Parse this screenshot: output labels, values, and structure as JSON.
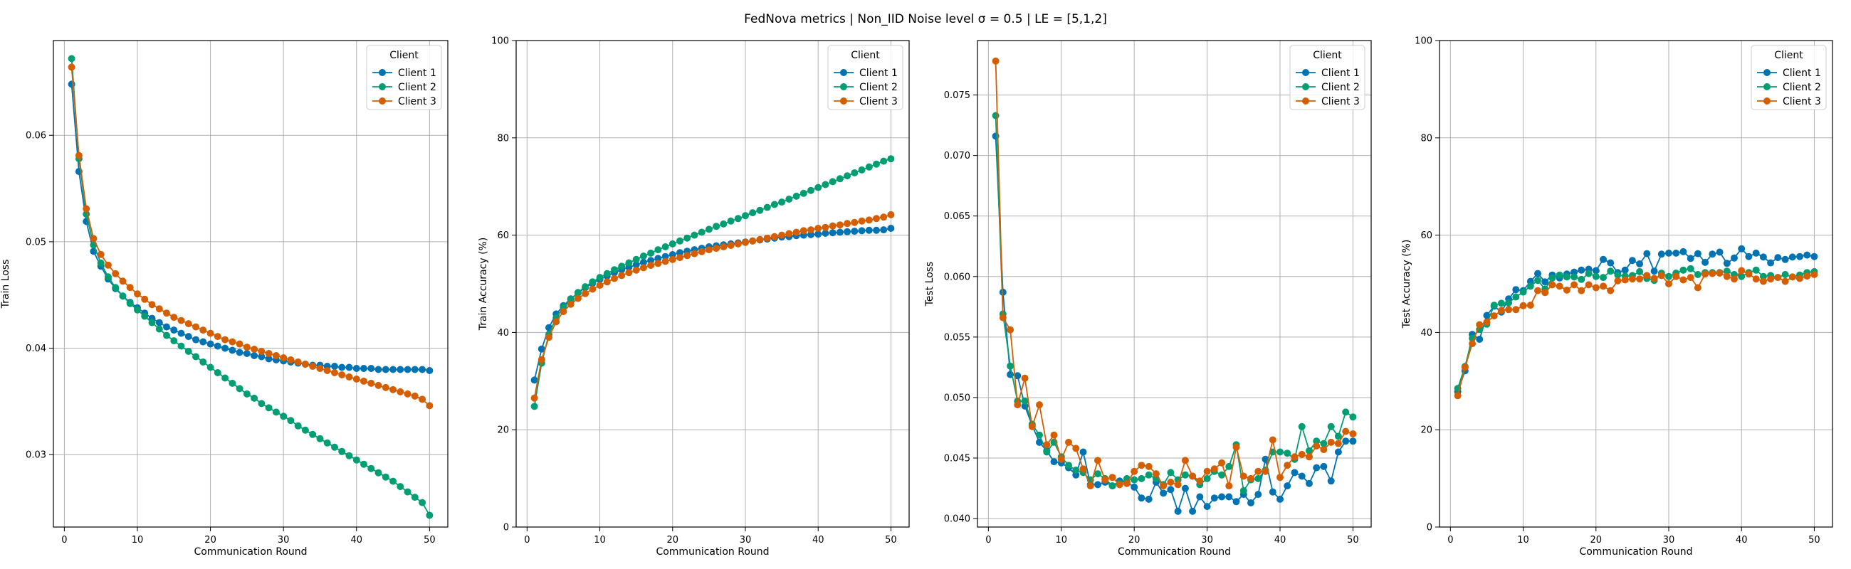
{
  "suptitle": "FedNova metrics | Non_IID Noise level σ = 0.5 | LE = [5,1,2]",
  "colors": {
    "Client 1": "#0173b2",
    "Client 2": "#029e73",
    "Client 3": "#d55e00",
    "grid": "#b0b0b0",
    "axes": "#000000",
    "legend_border": "#cccccc"
  },
  "legend": {
    "title": "Client",
    "placement": "upper right"
  },
  "chart_data": [
    {
      "type": "line",
      "xlabel": "Communication Round",
      "ylabel": "Train Loss",
      "xlim": [
        -1.5,
        52.5
      ],
      "ylim": [
        0.0232,
        0.0689
      ],
      "xticks": [
        0,
        10,
        20,
        30,
        40,
        50
      ],
      "yticks": [
        0.03,
        0.04,
        0.05,
        0.06
      ],
      "ytick_labels": [
        "0.03",
        "0.04",
        "0.05",
        "0.06"
      ],
      "grid": true,
      "x": [
        1,
        2,
        3,
        4,
        5,
        6,
        7,
        8,
        9,
        10,
        11,
        12,
        13,
        14,
        15,
        16,
        17,
        18,
        19,
        20,
        21,
        22,
        23,
        24,
        25,
        26,
        27,
        28,
        29,
        30,
        31,
        32,
        33,
        34,
        35,
        36,
        37,
        38,
        39,
        40,
        41,
        42,
        43,
        44,
        45,
        46,
        47,
        48,
        49,
        50
      ],
      "series": [
        {
          "name": "Client 1",
          "values": [
            0.0648,
            0.0566,
            0.0519,
            0.0491,
            0.0477,
            0.0465,
            0.0456,
            0.0449,
            0.0443,
            0.0438,
            0.0433,
            0.0428,
            0.0424,
            0.042,
            0.0417,
            0.0414,
            0.0411,
            0.0408,
            0.0406,
            0.0404,
            0.0402,
            0.04,
            0.0398,
            0.0396,
            0.0395,
            0.0393,
            0.0392,
            0.039,
            0.0389,
            0.0388,
            0.0387,
            0.0386,
            0.0385,
            0.0384,
            0.0384,
            0.0383,
            0.0383,
            0.0382,
            0.0382,
            0.0381,
            0.0381,
            0.0381,
            0.038,
            0.038,
            0.038,
            0.038,
            0.038,
            0.038,
            0.038,
            0.0379
          ]
        },
        {
          "name": "Client 2",
          "values": [
            0.0672,
            0.0578,
            0.0526,
            0.0497,
            0.048,
            0.0467,
            0.0457,
            0.0449,
            0.0442,
            0.0436,
            0.043,
            0.0424,
            0.0418,
            0.0412,
            0.0407,
            0.0402,
            0.0397,
            0.0392,
            0.0387,
            0.0382,
            0.0377,
            0.0372,
            0.0367,
            0.0362,
            0.0357,
            0.0353,
            0.0348,
            0.0344,
            0.034,
            0.0336,
            0.0332,
            0.0327,
            0.0323,
            0.0319,
            0.0315,
            0.0311,
            0.0307,
            0.0303,
            0.0299,
            0.0295,
            0.0291,
            0.0287,
            0.0283,
            0.0279,
            0.0275,
            0.027,
            0.0265,
            0.026,
            0.0255,
            0.0243
          ]
        },
        {
          "name": "Client 3",
          "values": [
            0.0664,
            0.0581,
            0.0531,
            0.0503,
            0.0488,
            0.0478,
            0.047,
            0.0463,
            0.0457,
            0.0451,
            0.0446,
            0.0441,
            0.0437,
            0.0433,
            0.0429,
            0.0426,
            0.0423,
            0.042,
            0.0417,
            0.0414,
            0.0411,
            0.0408,
            0.0406,
            0.0404,
            0.0401,
            0.0399,
            0.0397,
            0.0395,
            0.0393,
            0.0391,
            0.0389,
            0.0387,
            0.0385,
            0.0383,
            0.0381,
            0.0379,
            0.0377,
            0.0375,
            0.0373,
            0.0371,
            0.0369,
            0.0367,
            0.0365,
            0.0363,
            0.0361,
            0.0359,
            0.0357,
            0.0355,
            0.0352,
            0.0346
          ]
        }
      ]
    },
    {
      "type": "line",
      "xlabel": "Communication Round",
      "ylabel": "Train Accuracy (%)",
      "xlim": [
        -1.5,
        52.5
      ],
      "ylim": [
        0,
        100
      ],
      "xticks": [
        0,
        10,
        20,
        30,
        40,
        50
      ],
      "yticks": [
        0,
        20,
        40,
        60,
        80,
        100
      ],
      "ytick_labels": [
        "0",
        "20",
        "40",
        "60",
        "80",
        "100"
      ],
      "grid": true,
      "x": [
        1,
        2,
        3,
        4,
        5,
        6,
        7,
        8,
        9,
        10,
        11,
        12,
        13,
        14,
        15,
        16,
        17,
        18,
        19,
        20,
        21,
        22,
        23,
        24,
        25,
        26,
        27,
        28,
        29,
        30,
        31,
        32,
        33,
        34,
        35,
        36,
        37,
        38,
        39,
        40,
        41,
        42,
        43,
        44,
        45,
        46,
        47,
        48,
        49,
        50
      ],
      "series": [
        {
          "name": "Client 1",
          "values": [
            30.2,
            36.6,
            41.0,
            43.8,
            45.5,
            46.9,
            48.1,
            49.2,
            50.1,
            50.9,
            51.6,
            52.3,
            52.9,
            53.4,
            53.9,
            54.4,
            54.8,
            55.2,
            55.6,
            56.0,
            56.4,
            56.7,
            57.0,
            57.3,
            57.6,
            57.8,
            58.0,
            58.2,
            58.4,
            58.6,
            58.8,
            59.0,
            59.2,
            59.4,
            59.6,
            59.7,
            59.9,
            60.0,
            60.1,
            60.2,
            60.4,
            60.5,
            60.6,
            60.7,
            60.8,
            60.9,
            61.0,
            61.0,
            61.1,
            61.4
          ]
        },
        {
          "name": "Client 2",
          "values": [
            24.8,
            33.7,
            39.6,
            43.0,
            45.2,
            46.8,
            48.2,
            49.4,
            50.4,
            51.3,
            52.1,
            52.9,
            53.6,
            54.3,
            55.0,
            55.7,
            56.3,
            57.0,
            57.6,
            58.2,
            58.8,
            59.4,
            60.0,
            60.6,
            61.2,
            61.8,
            62.3,
            62.9,
            63.4,
            64.0,
            64.6,
            65.1,
            65.7,
            66.3,
            66.8,
            67.4,
            68.0,
            68.6,
            69.2,
            69.8,
            70.4,
            71.0,
            71.6,
            72.2,
            72.8,
            73.4,
            74.0,
            74.6,
            75.2,
            75.7
          ]
        },
        {
          "name": "Client 3",
          "values": [
            26.5,
            34.4,
            39.0,
            42.2,
            44.3,
            45.8,
            47.0,
            48.0,
            48.9,
            49.7,
            50.4,
            51.1,
            51.7,
            52.3,
            52.8,
            53.3,
            53.8,
            54.2,
            54.6,
            55.0,
            55.4,
            55.8,
            56.2,
            56.6,
            57.0,
            57.3,
            57.6,
            57.9,
            58.2,
            58.5,
            58.8,
            59.1,
            59.4,
            59.7,
            60.0,
            60.3,
            60.6,
            60.9,
            61.1,
            61.4,
            61.6,
            61.9,
            62.1,
            62.4,
            62.6,
            62.9,
            63.1,
            63.4,
            63.7,
            64.2
          ]
        }
      ]
    },
    {
      "type": "line",
      "xlabel": "Communication Round",
      "ylabel": "Test Loss",
      "xlim": [
        -1.5,
        52.5
      ],
      "ylim": [
        0.0393,
        0.0795
      ],
      "xticks": [
        0,
        10,
        20,
        30,
        40,
        50
      ],
      "yticks": [
        0.04,
        0.045,
        0.05,
        0.055,
        0.06,
        0.065,
        0.07,
        0.075
      ],
      "ytick_labels": [
        "0.040",
        "0.045",
        "0.050",
        "0.055",
        "0.060",
        "0.065",
        "0.070",
        "0.075"
      ],
      "grid": true,
      "x": [
        1,
        2,
        3,
        4,
        5,
        6,
        7,
        8,
        9,
        10,
        11,
        12,
        13,
        14,
        15,
        16,
        17,
        18,
        19,
        20,
        21,
        22,
        23,
        24,
        25,
        26,
        27,
        28,
        29,
        30,
        31,
        32,
        33,
        34,
        35,
        36,
        37,
        38,
        39,
        40,
        41,
        42,
        43,
        44,
        45,
        46,
        47,
        48,
        49,
        50
      ],
      "series": [
        {
          "name": "Client 1",
          "values": [
            0.0716,
            0.0587,
            0.0519,
            0.0518,
            0.0493,
            0.0477,
            0.0463,
            0.0456,
            0.0447,
            0.0446,
            0.0442,
            0.0436,
            0.0455,
            0.0428,
            0.0428,
            0.043,
            0.0427,
            0.0431,
            0.043,
            0.0426,
            0.0417,
            0.0416,
            0.043,
            0.0421,
            0.0424,
            0.0406,
            0.0425,
            0.0406,
            0.0418,
            0.041,
            0.0417,
            0.0418,
            0.0418,
            0.0414,
            0.042,
            0.0413,
            0.042,
            0.0449,
            0.0422,
            0.0416,
            0.0427,
            0.0438,
            0.0435,
            0.0429,
            0.0442,
            0.0443,
            0.0431,
            0.0455,
            0.0464,
            0.0464
          ]
        },
        {
          "name": "Client 2",
          "values": [
            0.0733,
            0.0569,
            0.0526,
            0.0497,
            0.0497,
            0.0478,
            0.0469,
            0.0455,
            0.0463,
            0.0451,
            0.0444,
            0.044,
            0.0438,
            0.0432,
            0.0437,
            0.0433,
            0.0427,
            0.0429,
            0.0433,
            0.0432,
            0.0433,
            0.0436,
            0.0433,
            0.0428,
            0.0438,
            0.0432,
            0.0436,
            0.0435,
            0.0428,
            0.0433,
            0.0439,
            0.0436,
            0.0443,
            0.0461,
            0.0423,
            0.0432,
            0.0433,
            0.044,
            0.0455,
            0.0455,
            0.0454,
            0.0449,
            0.0476,
            0.0456,
            0.0464,
            0.0462,
            0.0476,
            0.0468,
            0.0488,
            0.0484
          ]
        },
        {
          "name": "Client 3",
          "values": [
            0.0778,
            0.0566,
            0.0556,
            0.0494,
            0.0516,
            0.0476,
            0.0494,
            0.0461,
            0.0469,
            0.0449,
            0.0463,
            0.0458,
            0.0441,
            0.0427,
            0.0448,
            0.0432,
            0.0434,
            0.0428,
            0.0429,
            0.0439,
            0.0444,
            0.0443,
            0.0437,
            0.0427,
            0.043,
            0.0428,
            0.0448,
            0.0435,
            0.0431,
            0.0439,
            0.0441,
            0.0446,
            0.0427,
            0.0459,
            0.0435,
            0.0433,
            0.0439,
            0.0439,
            0.0465,
            0.0434,
            0.0444,
            0.0451,
            0.0453,
            0.0451,
            0.046,
            0.0457,
            0.0463,
            0.0462,
            0.0472,
            0.047
          ]
        }
      ]
    },
    {
      "type": "line",
      "xlabel": "Communication Round",
      "ylabel": "Test Accuracy (%)",
      "xlim": [
        -1.5,
        52.5
      ],
      "ylim": [
        0,
        100
      ],
      "xticks": [
        0,
        10,
        20,
        30,
        40,
        50
      ],
      "yticks": [
        0,
        20,
        40,
        60,
        80,
        100
      ],
      "ytick_labels": [
        "0",
        "20",
        "40",
        "60",
        "80",
        "100"
      ],
      "grid": true,
      "x": [
        1,
        2,
        3,
        4,
        5,
        6,
        7,
        8,
        9,
        10,
        11,
        12,
        13,
        14,
        15,
        16,
        17,
        18,
        19,
        20,
        21,
        22,
        23,
        24,
        25,
        26,
        27,
        28,
        29,
        30,
        31,
        32,
        33,
        34,
        35,
        36,
        37,
        38,
        39,
        40,
        41,
        42,
        43,
        44,
        45,
        46,
        47,
        48,
        49,
        50
      ],
      "series": [
        {
          "name": "Client 1",
          "values": [
            27.8,
            32.1,
            39.6,
            38.6,
            43.5,
            45.4,
            44.2,
            46.9,
            48.8,
            48.6,
            50.5,
            52.1,
            50.4,
            51.8,
            51.2,
            52.0,
            52.4,
            52.8,
            53.0,
            52.7,
            55.0,
            54.3,
            52.3,
            52.8,
            54.8,
            54.1,
            56.2,
            52.6,
            56.1,
            56.3,
            56.3,
            56.6,
            55.2,
            56.2,
            54.4,
            56.1,
            56.5,
            54.2,
            55.3,
            57.2,
            55.6,
            56.3,
            55.5,
            54.3,
            55.4,
            55.0,
            55.5,
            55.6,
            55.9,
            55.6
          ]
        },
        {
          "name": "Client 2",
          "values": [
            28.5,
            33.0,
            38.8,
            40.6,
            41.7,
            45.6,
            46.0,
            46.1,
            47.3,
            48.3,
            49.5,
            50.7,
            48.9,
            51.2,
            51.8,
            51.4,
            51.4,
            50.9,
            52.1,
            51.5,
            51.3,
            52.6,
            51.8,
            51.6,
            51.7,
            52.5,
            51.1,
            50.7,
            52.2,
            51.5,
            52.2,
            52.8,
            53.1,
            51.9,
            52.3,
            52.3,
            52.3,
            52.6,
            51.9,
            51.5,
            52.3,
            52.8,
            51.5,
            51.7,
            51.3,
            51.9,
            51.4,
            51.8,
            52.3,
            52.5
          ]
        },
        {
          "name": "Client 3",
          "values": [
            27.0,
            32.8,
            37.7,
            41.6,
            42.1,
            43.4,
            44.5,
            44.7,
            44.7,
            45.5,
            45.6,
            48.6,
            48.2,
            49.8,
            49.5,
            48.7,
            49.8,
            48.6,
            49.8,
            49.2,
            49.5,
            48.6,
            50.6,
            50.8,
            51.0,
            51.0,
            51.7,
            51.1,
            51.7,
            50.0,
            51.5,
            50.8,
            51.3,
            49.2,
            52.0,
            52.1,
            52.2,
            51.5,
            51.0,
            52.7,
            52.0,
            51.0,
            50.5,
            51.0,
            51.3,
            50.5,
            51.4,
            51.1,
            51.6,
            51.9
          ]
        }
      ]
    }
  ]
}
